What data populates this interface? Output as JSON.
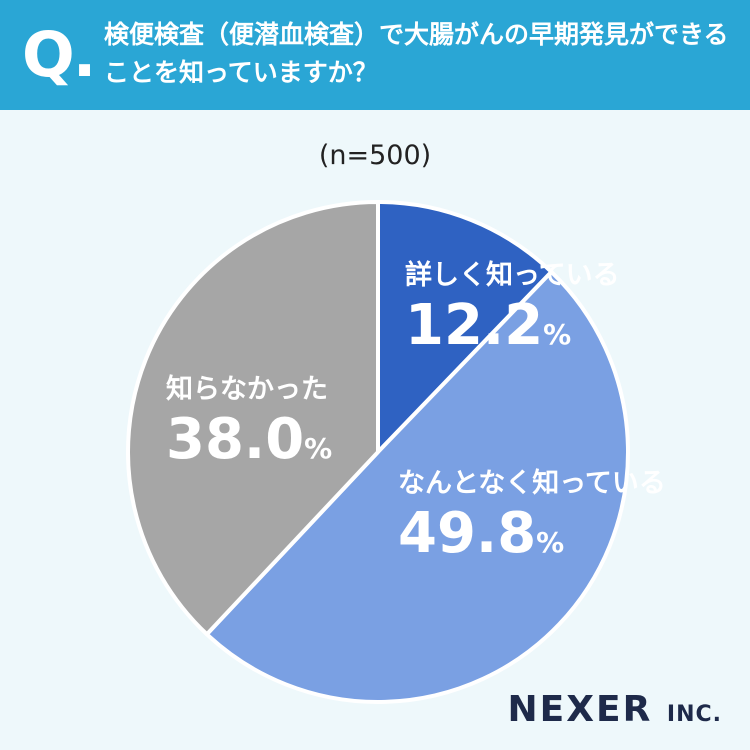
{
  "header": {
    "q_mark": "Q.",
    "question": "検便検査（便潜血検査）で大腸がんの早期発見ができることを知っていますか？"
  },
  "sample_size": "(n=500)",
  "chart_data": {
    "type": "pie",
    "categories": [
      "詳しく知っている",
      "なんとなく知っている",
      "知らなかった"
    ],
    "values": [
      12.2,
      49.8,
      38.0
    ],
    "value_labels": [
      "12.2",
      "49.8",
      "38.0"
    ],
    "unit": "%",
    "colors": [
      "#2f62c2",
      "#7aa0e3",
      "#a6a6a6"
    ]
  },
  "logo": {
    "main": "NEXER",
    "suffix": "INC."
  }
}
